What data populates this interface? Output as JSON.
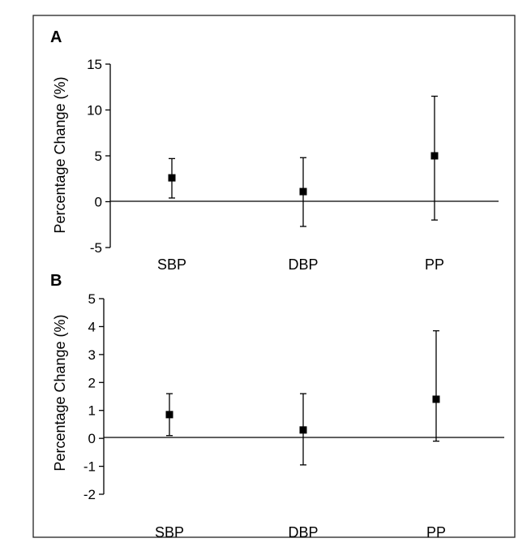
{
  "chart_data": [
    {
      "type": "scatter",
      "panel": "A",
      "categories": [
        "SBP",
        "DBP",
        "PP"
      ],
      "ylabel": "Percentage Change (%)",
      "ylim": [
        -5,
        15
      ],
      "yticks": [
        "15",
        "10",
        "5",
        "0",
        "-5"
      ],
      "series": [
        {
          "values": [
            2.6,
            1.1,
            5.0
          ],
          "lower": [
            0.4,
            -2.7,
            -2.0
          ],
          "upper": [
            4.7,
            4.8,
            11.5
          ]
        }
      ]
    },
    {
      "type": "scatter",
      "panel": "B",
      "categories": [
        "SBP",
        "DBP",
        "PP"
      ],
      "ylabel": "Percentage Change (%)",
      "ylim": [
        -2,
        5
      ],
      "yticks": [
        "5",
        "4",
        "3",
        "2",
        "1",
        "0",
        "-1",
        "-2"
      ],
      "series": [
        {
          "values": [
            0.85,
            0.3,
            1.4
          ],
          "lower": [
            0.1,
            -0.95,
            -0.1
          ],
          "upper": [
            1.6,
            1.6,
            3.85
          ]
        }
      ]
    }
  ]
}
